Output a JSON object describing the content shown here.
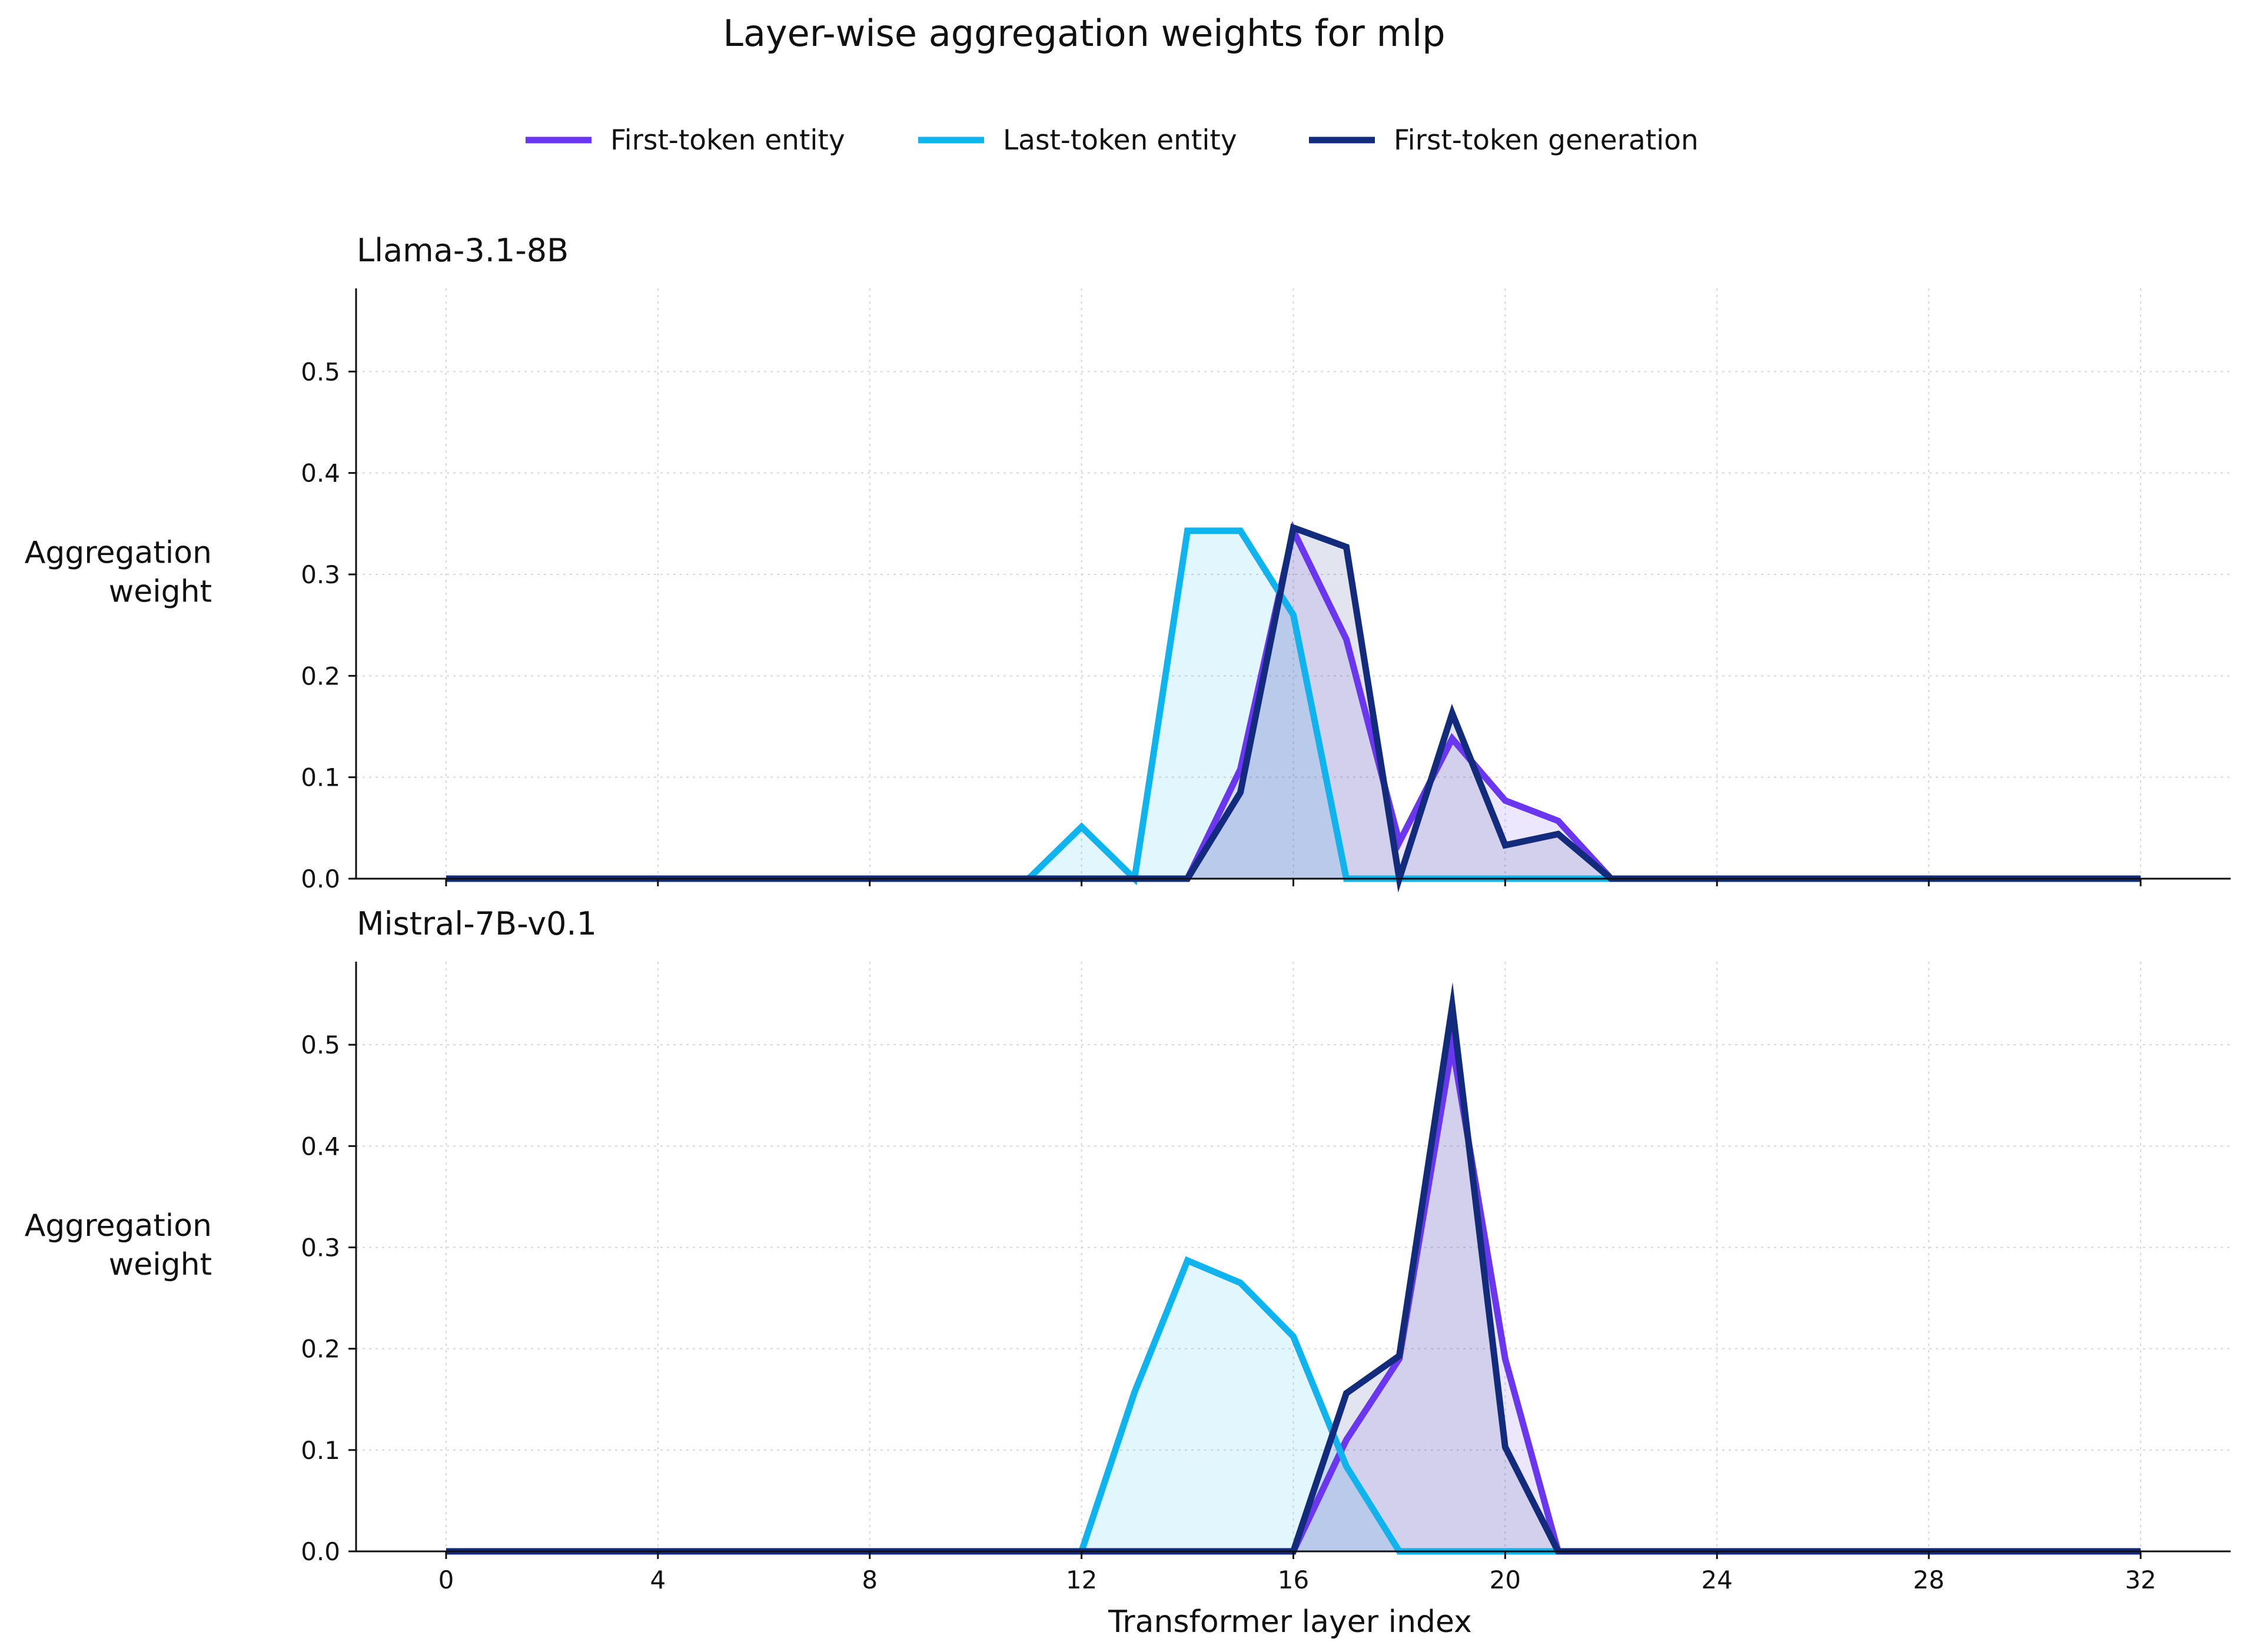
{
  "chart_data": {
    "type": "line",
    "title": "Layer-wise aggregation weights for mlp",
    "legend_position": "top-center",
    "grid": true,
    "xlabel": "Transformer layer index",
    "ylabel": "Aggregation\nweight",
    "xlim": [
      -1.7,
      33.7
    ],
    "ylim": [
      0,
      0.582
    ],
    "xticks": [
      0,
      4,
      8,
      12,
      16,
      20,
      24,
      28,
      32
    ],
    "yticks": [
      0.0,
      0.1,
      0.2,
      0.3,
      0.4,
      0.5
    ],
    "legend": [
      {
        "name": "First-token entity",
        "color": "#6a36f0"
      },
      {
        "name": "Last-token entity",
        "color": "#0fb3ee"
      },
      {
        "name": "First-token generation",
        "color": "#132b7c"
      }
    ],
    "panels": [
      {
        "title": "Llama-3.1-8B",
        "show_xticklabels": false,
        "x": [
          0,
          1,
          2,
          3,
          4,
          5,
          6,
          7,
          8,
          9,
          10,
          11,
          12,
          13,
          14,
          15,
          16,
          17,
          18,
          19,
          20,
          21,
          22,
          23,
          24,
          25,
          26,
          27,
          28,
          29,
          30,
          31,
          32
        ],
        "series": [
          {
            "name": "First-token entity",
            "values": [
              0,
              0,
              0,
              0,
              0,
              0,
              0,
              0,
              0,
              0,
              0,
              0,
              0,
              0,
              0,
              0.108,
              0.343,
              0.236,
              0.036,
              0.138,
              0.077,
              0.057,
              0,
              0,
              0,
              0,
              0,
              0,
              0,
              0,
              0,
              0,
              0
            ]
          },
          {
            "name": "Last-token entity",
            "values": [
              0,
              0,
              0,
              0,
              0,
              0,
              0,
              0,
              0,
              0,
              0,
              0,
              0.051,
              0,
              0.343,
              0.343,
              0.26,
              0,
              0,
              0,
              0,
              0,
              0,
              0,
              0,
              0,
              0,
              0,
              0,
              0,
              0,
              0,
              0
            ]
          },
          {
            "name": "First-token generation",
            "values": [
              0,
              0,
              0,
              0,
              0,
              0,
              0,
              0,
              0,
              0,
              0,
              0,
              0,
              0,
              0,
              0.085,
              0.346,
              0.327,
              0,
              0.163,
              0.033,
              0.044,
              0,
              0,
              0,
              0,
              0,
              0,
              0,
              0,
              0,
              0,
              0
            ]
          }
        ]
      },
      {
        "title": "Mistral-7B-v0.1",
        "show_xticklabels": true,
        "x": [
          0,
          1,
          2,
          3,
          4,
          5,
          6,
          7,
          8,
          9,
          10,
          11,
          12,
          13,
          14,
          15,
          16,
          17,
          18,
          19,
          20,
          21,
          22,
          23,
          24,
          25,
          26,
          27,
          28,
          29,
          30,
          31,
          32
        ],
        "series": [
          {
            "name": "First-token entity",
            "values": [
              0,
              0,
              0,
              0,
              0,
              0,
              0,
              0,
              0,
              0,
              0,
              0,
              0,
              0,
              0,
              0,
              0,
              0.11,
              0.19,
              0.5,
              0.19,
              0,
              0,
              0,
              0,
              0,
              0,
              0,
              0,
              0,
              0,
              0,
              0
            ]
          },
          {
            "name": "Last-token entity",
            "values": [
              0,
              0,
              0,
              0,
              0,
              0,
              0,
              0,
              0,
              0,
              0,
              0,
              0,
              0.157,
              0.287,
              0.265,
              0.212,
              0.084,
              0,
              0,
              0,
              0,
              0,
              0,
              0,
              0,
              0,
              0,
              0,
              0,
              0,
              0,
              0
            ]
          },
          {
            "name": "First-token generation",
            "values": [
              0,
              0,
              0,
              0,
              0,
              0,
              0,
              0,
              0,
              0,
              0,
              0,
              0,
              0,
              0,
              0,
              0,
              0.156,
              0.193,
              0.538,
              0.103,
              0,
              0,
              0,
              0,
              0,
              0,
              0,
              0,
              0,
              0,
              0,
              0
            ]
          }
        ]
      }
    ]
  }
}
